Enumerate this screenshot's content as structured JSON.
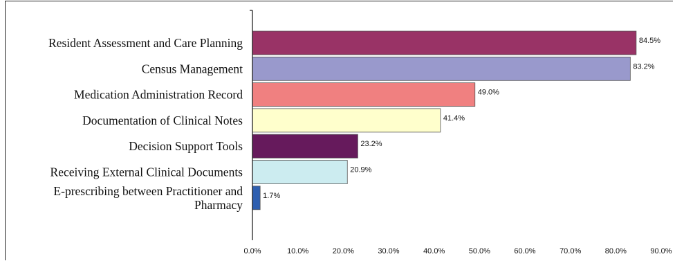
{
  "chart_data": {
    "type": "bar",
    "orientation": "horizontal",
    "categories": [
      [
        "Resident Assessment and Care Planning"
      ],
      [
        "Census Management"
      ],
      [
        "Medication Administration Record"
      ],
      [
        "Documentation of Clinical Notes"
      ],
      [
        "Decision Support Tools"
      ],
      [
        "Receiving External Clinical Documents"
      ],
      [
        "E-prescribing between Practitioner and",
        "Pharmacy"
      ]
    ],
    "values": [
      84.5,
      83.2,
      49.0,
      41.4,
      23.2,
      20.9,
      1.7
    ],
    "value_labels": [
      "84.5%",
      "83.2%",
      "49.0%",
      "41.4%",
      "23.2%",
      "20.9%",
      "1.7%"
    ],
    "colors": [
      "#993366",
      "#9999cc",
      "#f08080",
      "#ffffcc",
      "#661a5c",
      "#ccecf0",
      "#2e5fb0"
    ],
    "xlim": [
      0,
      90
    ],
    "xticks": [
      "0.0%",
      "10.0%",
      "20.0%",
      "30.0%",
      "40.0%",
      "50.0%",
      "60.0%",
      "70.0%",
      "80.0%",
      "90.0%"
    ],
    "grid": false,
    "title": "",
    "xlabel": "",
    "ylabel": ""
  }
}
